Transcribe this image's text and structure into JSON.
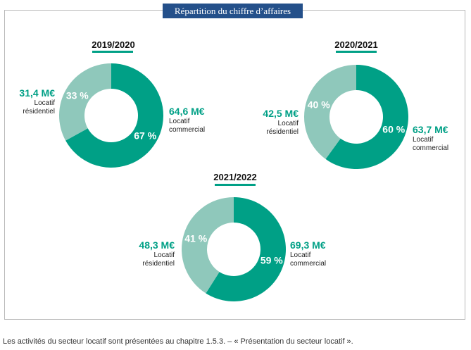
{
  "header": {
    "title": "Répartition du chiffre d’affaires"
  },
  "colors": {
    "commercial": "#00a086",
    "residential": "#8fc8bb",
    "title_bg": "#24508a"
  },
  "chart_data": [
    {
      "type": "pie",
      "title": "2019/2020",
      "series": [
        {
          "name": "Locatif commercial",
          "value": 64.6,
          "value_label": "64,6 M€",
          "percent_label": "67 %",
          "pct": 67
        },
        {
          "name": "Locatif résidentiel",
          "value": 31.4,
          "value_label": "31,4 M€",
          "percent_label": "33 %",
          "pct": 33
        }
      ]
    },
    {
      "type": "pie",
      "title": "2020/2021",
      "series": [
        {
          "name": "Locatif commercial",
          "value": 63.7,
          "value_label": "63,7 M€",
          "percent_label": "60 %",
          "pct": 60
        },
        {
          "name": "Locatif résidentiel",
          "value": 42.5,
          "value_label": "42,5 M€",
          "percent_label": "40 %",
          "pct": 40
        }
      ]
    },
    {
      "type": "pie",
      "title": "2021/2022",
      "series": [
        {
          "name": "Locatif commercial",
          "value": 69.3,
          "value_label": "69,3 M€",
          "percent_label": "59 %",
          "pct": 59
        },
        {
          "name": "Locatif résidentiel",
          "value": 48.3,
          "value_label": "48,3 M€",
          "percent_label": "41 %",
          "pct": 41
        }
      ]
    }
  ],
  "labels": {
    "residential_line1": "Locatif",
    "residential_line2": "résidentiel",
    "commercial_line1": "Locatif",
    "commercial_line2": "commercial"
  },
  "footnote": "Les activités du secteur locatif sont présentées au chapitre 1.5.3. – « Présentation du secteur locatif »."
}
